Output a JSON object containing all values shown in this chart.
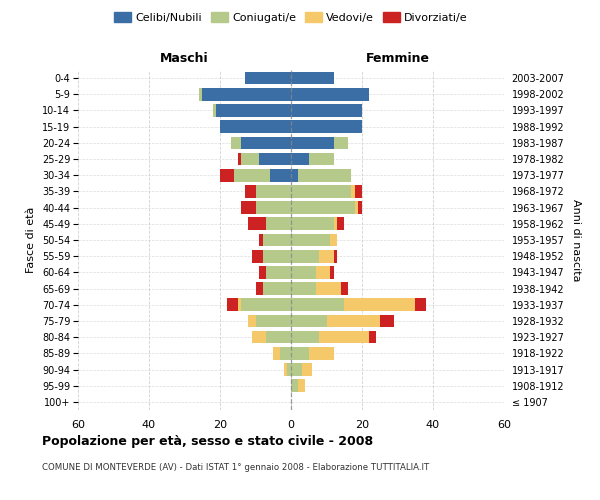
{
  "age_groups": [
    "100+",
    "95-99",
    "90-94",
    "85-89",
    "80-84",
    "75-79",
    "70-74",
    "65-69",
    "60-64",
    "55-59",
    "50-54",
    "45-49",
    "40-44",
    "35-39",
    "30-34",
    "25-29",
    "20-24",
    "15-19",
    "10-14",
    "5-9",
    "0-4"
  ],
  "birth_years": [
    "≤ 1907",
    "1908-1912",
    "1913-1917",
    "1918-1922",
    "1923-1927",
    "1928-1932",
    "1933-1937",
    "1938-1942",
    "1943-1947",
    "1948-1952",
    "1953-1957",
    "1958-1962",
    "1963-1967",
    "1968-1972",
    "1973-1977",
    "1978-1982",
    "1983-1987",
    "1988-1992",
    "1993-1997",
    "1998-2002",
    "2003-2007"
  ],
  "male": {
    "celibi": [
      0,
      0,
      0,
      0,
      0,
      0,
      0,
      0,
      0,
      0,
      0,
      0,
      0,
      0,
      6,
      9,
      14,
      20,
      21,
      25,
      13
    ],
    "coniugati": [
      0,
      0,
      1,
      3,
      7,
      10,
      14,
      8,
      7,
      8,
      8,
      7,
      10,
      10,
      10,
      5,
      3,
      0,
      1,
      1,
      0
    ],
    "vedovi": [
      0,
      0,
      1,
      2,
      4,
      2,
      1,
      0,
      0,
      0,
      0,
      0,
      0,
      0,
      0,
      0,
      0,
      0,
      0,
      0,
      0
    ],
    "divorziati": [
      0,
      0,
      0,
      0,
      0,
      0,
      3,
      2,
      2,
      3,
      1,
      5,
      4,
      3,
      4,
      1,
      0,
      0,
      0,
      0,
      0
    ]
  },
  "female": {
    "nubili": [
      0,
      0,
      0,
      0,
      0,
      0,
      0,
      0,
      0,
      0,
      0,
      0,
      0,
      0,
      2,
      5,
      12,
      20,
      20,
      22,
      12
    ],
    "coniugate": [
      0,
      2,
      3,
      5,
      8,
      10,
      15,
      7,
      7,
      8,
      11,
      12,
      18,
      17,
      15,
      7,
      4,
      0,
      0,
      0,
      0
    ],
    "vedove": [
      0,
      2,
      3,
      7,
      14,
      15,
      20,
      7,
      4,
      4,
      2,
      1,
      1,
      1,
      0,
      0,
      0,
      0,
      0,
      0,
      0
    ],
    "divorziate": [
      0,
      0,
      0,
      0,
      2,
      4,
      3,
      2,
      1,
      1,
      0,
      2,
      1,
      2,
      0,
      0,
      0,
      0,
      0,
      0,
      0
    ]
  },
  "colors": {
    "celibi": "#3a6ea5",
    "coniugati": "#b5c98b",
    "vedovi": "#f5c96a",
    "divorziati": "#cc2222"
  },
  "xlim": 60,
  "title": "Popolazione per età, sesso e stato civile - 2008",
  "subtitle": "COMUNE DI MONTEVERDE (AV) - Dati ISTAT 1° gennaio 2008 - Elaborazione TUTTITALIA.IT",
  "ylabel": "Fasce di età",
  "ylabel_right": "Anni di nascita",
  "xlabel_left": "Maschi",
  "xlabel_right": "Femmine",
  "legend_labels": [
    "Celibi/Nubili",
    "Coniugati/e",
    "Vedovi/e",
    "Divorziati/e"
  ],
  "bg_color": "#ffffff",
  "grid_color": "#cccccc"
}
